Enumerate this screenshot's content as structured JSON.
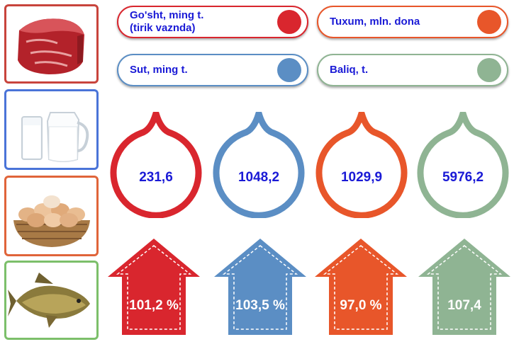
{
  "colors": {
    "red": "#d9262e",
    "blue": "#5b8ec4",
    "orange": "#e8562a",
    "green": "#8fb493",
    "label_blue": "#1a1ad6"
  },
  "icons": [
    "meat-image",
    "milk-image",
    "eggs-image",
    "fish-image"
  ],
  "legend": [
    {
      "label": "Go'sht, ming t.\n(tirik vaznda)",
      "color": "#d9262e"
    },
    {
      "label": "Tuxum, mln. dona",
      "color": "#e8562a"
    },
    {
      "label": "Sut, ming t.",
      "color": "#5b8ec4"
    },
    {
      "label": "Baliq, t.",
      "color": "#8fb493"
    }
  ],
  "volumes": [
    {
      "value": "231,6",
      "color": "#d9262e"
    },
    {
      "value": "1048,2",
      "color": "#5b8ec4"
    },
    {
      "value": "1029,9",
      "color": "#e8562a"
    },
    {
      "value": "5976,2",
      "color": "#8fb493"
    }
  ],
  "growth": [
    {
      "value": "101,2 %",
      "color": "#d9262e"
    },
    {
      "value": "103,5 %",
      "color": "#5b8ec4"
    },
    {
      "value": "97,0 %",
      "color": "#e8562a"
    },
    {
      "value": "107,4",
      "color": "#8fb493"
    }
  ]
}
